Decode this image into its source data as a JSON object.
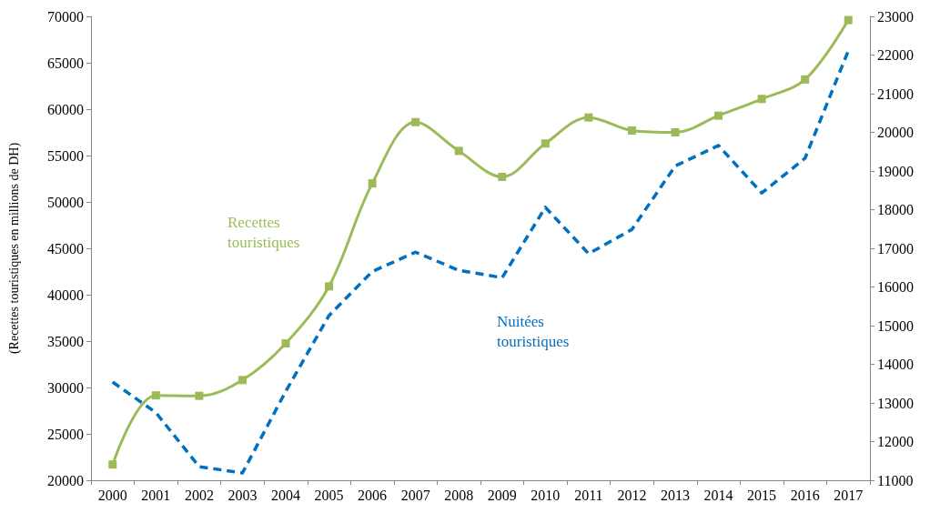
{
  "chart_data": {
    "type": "line",
    "ylabel": "(Recettes touristiques en millions de DH)",
    "categories": [
      "2000",
      "2001",
      "2002",
      "2003",
      "2004",
      "2005",
      "2006",
      "2007",
      "2008",
      "2009",
      "2010",
      "2011",
      "2012",
      "2013",
      "2014",
      "2015",
      "2016",
      "2017"
    ],
    "series": [
      {
        "name": "Recettes touristiques",
        "color": "#9bbb59",
        "marker": "square",
        "line_style": "solid",
        "values": [
          21700,
          29150,
          29100,
          30800,
          34750,
          40900,
          52000,
          58600,
          55500,
          52700,
          56300,
          59100,
          57700,
          57500,
          59300,
          61100,
          63200,
          69600
        ]
      },
      {
        "name": "Nuitées touristiques",
        "color": "#0070c0",
        "marker": "none",
        "line_style": "dashed",
        "axis": "y2",
        "values": [
          13540,
          12750,
          11350,
          11190,
          13300,
          15260,
          16400,
          16900,
          16430,
          16240,
          18060,
          16860,
          17490,
          19130,
          19660,
          18430,
          19330,
          22110
        ]
      }
    ],
    "ylim": [
      20000,
      70000
    ],
    "yticks": [
      20000,
      25000,
      30000,
      35000,
      40000,
      45000,
      50000,
      55000,
      60000,
      65000,
      70000
    ],
    "y2lim": [
      11000,
      23000
    ],
    "y2ticks": [
      11000,
      12000,
      13000,
      14000,
      15000,
      16000,
      17000,
      18000,
      19000,
      20000,
      21000,
      22000,
      23000
    ],
    "grid": false,
    "legend": false
  }
}
